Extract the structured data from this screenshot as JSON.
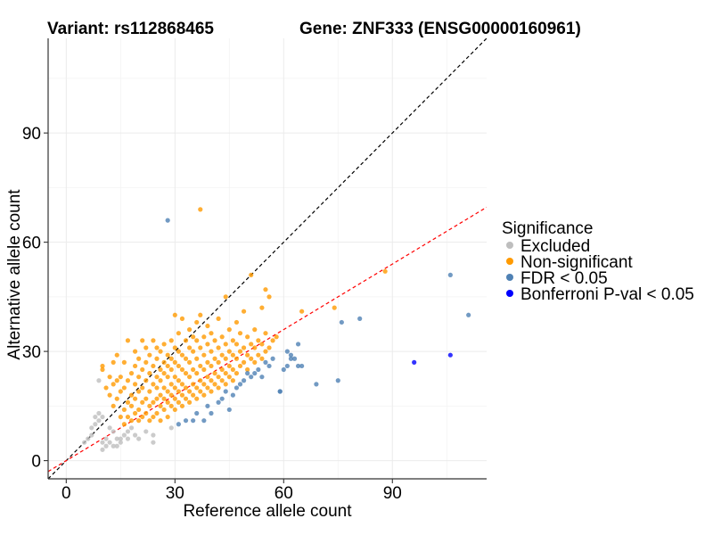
{
  "chart_data": {
    "type": "scatter",
    "title_variant": "Variant: rs112868465",
    "title_gene": "Gene: ZNF333 (ENSG00000160961)",
    "xlabel": "Reference allele count",
    "ylabel": "Alternative allele count",
    "xlim": [
      -5,
      116
    ],
    "ylim": [
      -5,
      116
    ],
    "xticks": [
      0,
      30,
      60,
      90
    ],
    "yticks": [
      0,
      30,
      60,
      90
    ],
    "grid": true,
    "reference_lines": [
      {
        "name": "identity",
        "slope": 1.0,
        "intercept": 0,
        "color": "#000000",
        "style": "dashed"
      },
      {
        "name": "fitted",
        "slope": 0.6,
        "intercept": 0,
        "color": "#ff0000",
        "style": "dashed"
      }
    ],
    "legend": {
      "title": "Significance",
      "position": "right",
      "entries": [
        {
          "label": "Excluded",
          "color": "#bebebe"
        },
        {
          "label": "Non-significant",
          "color": "#ff9a00"
        },
        {
          "label": "FDR < 0.05",
          "color": "#4f81b4"
        },
        {
          "label": "Bonferroni P-val < 0.05",
          "color": "#0000ff"
        }
      ]
    },
    "series": [
      {
        "name": "Excluded",
        "color": "#bebebe",
        "points": [
          [
            6,
            6
          ],
          [
            7,
            9
          ],
          [
            8,
            10
          ],
          [
            8,
            12
          ],
          [
            9,
            11
          ],
          [
            9,
            13
          ],
          [
            9,
            22
          ],
          [
            10,
            3
          ],
          [
            10,
            5
          ],
          [
            10,
            12
          ],
          [
            11,
            4
          ],
          [
            11,
            6
          ],
          [
            12,
            5
          ],
          [
            13,
            8
          ],
          [
            13,
            4
          ],
          [
            14,
            6
          ],
          [
            14,
            4
          ],
          [
            15,
            5
          ],
          [
            16,
            7
          ],
          [
            17,
            8
          ],
          [
            17,
            6
          ],
          [
            18,
            9
          ],
          [
            19,
            7
          ],
          [
            20,
            6
          ],
          [
            22,
            8
          ],
          [
            24,
            7
          ],
          [
            24,
            5
          ],
          [
            29,
            9
          ],
          [
            5,
            5
          ],
          [
            7,
            7
          ],
          [
            12,
            9
          ],
          [
            15,
            6
          ]
        ]
      },
      {
        "name": "Non-significant",
        "color": "#ff9a00",
        "points": [
          [
            10,
            25
          ],
          [
            10,
            26
          ],
          [
            11,
            20
          ],
          [
            12,
            18
          ],
          [
            12,
            23
          ],
          [
            13,
            15
          ],
          [
            13,
            21
          ],
          [
            13,
            27
          ],
          [
            14,
            17
          ],
          [
            14,
            22
          ],
          [
            14,
            29
          ],
          [
            15,
            12
          ],
          [
            15,
            19
          ],
          [
            15,
            23
          ],
          [
            16,
            10
          ],
          [
            16,
            14
          ],
          [
            16,
            20
          ],
          [
            16,
            27
          ],
          [
            17,
            12
          ],
          [
            17,
            16
          ],
          [
            17,
            22
          ],
          [
            17,
            33
          ],
          [
            18,
            11
          ],
          [
            18,
            15
          ],
          [
            18,
            18
          ],
          [
            18,
            24
          ],
          [
            19,
            13
          ],
          [
            19,
            17
          ],
          [
            19,
            21
          ],
          [
            19,
            26
          ],
          [
            19,
            30
          ],
          [
            20,
            11
          ],
          [
            20,
            14
          ],
          [
            20,
            19
          ],
          [
            20,
            23
          ],
          [
            20,
            28
          ],
          [
            21,
            12
          ],
          [
            21,
            16
          ],
          [
            21,
            20
          ],
          [
            21,
            25
          ],
          [
            21,
            33
          ],
          [
            22,
            13
          ],
          [
            22,
            17
          ],
          [
            22,
            22
          ],
          [
            22,
            27
          ],
          [
            22,
            31
          ],
          [
            23,
            11
          ],
          [
            23,
            15
          ],
          [
            23,
            19
          ],
          [
            23,
            24
          ],
          [
            23,
            29
          ],
          [
            24,
            12
          ],
          [
            24,
            16
          ],
          [
            24,
            21
          ],
          [
            24,
            26
          ],
          [
            24,
            33
          ],
          [
            25,
            13
          ],
          [
            25,
            17
          ],
          [
            25,
            20
          ],
          [
            25,
            23
          ],
          [
            25,
            28
          ],
          [
            25,
            31
          ],
          [
            26,
            11
          ],
          [
            26,
            15
          ],
          [
            26,
            18
          ],
          [
            26,
            22
          ],
          [
            26,
            25
          ],
          [
            26,
            30
          ],
          [
            27,
            14
          ],
          [
            27,
            17
          ],
          [
            27,
            20
          ],
          [
            27,
            24
          ],
          [
            27,
            27
          ],
          [
            27,
            32
          ],
          [
            28,
            12
          ],
          [
            28,
            16
          ],
          [
            28,
            19
          ],
          [
            28,
            23
          ],
          [
            28,
            26
          ],
          [
            28,
            29
          ],
          [
            29,
            15
          ],
          [
            29,
            18
          ],
          [
            29,
            21
          ],
          [
            29,
            25
          ],
          [
            29,
            28
          ],
          [
            29,
            33
          ],
          [
            30,
            14
          ],
          [
            30,
            17
          ],
          [
            30,
            20
          ],
          [
            30,
            23
          ],
          [
            30,
            27
          ],
          [
            30,
            31
          ],
          [
            30,
            40
          ],
          [
            31,
            16
          ],
          [
            31,
            19
          ],
          [
            31,
            22
          ],
          [
            31,
            26
          ],
          [
            31,
            30
          ],
          [
            31,
            35
          ],
          [
            32,
            15
          ],
          [
            32,
            18
          ],
          [
            32,
            21
          ],
          [
            32,
            25
          ],
          [
            32,
            29
          ],
          [
            32,
            39
          ],
          [
            33,
            17
          ],
          [
            33,
            20
          ],
          [
            33,
            24
          ],
          [
            33,
            28
          ],
          [
            33,
            33
          ],
          [
            34,
            16
          ],
          [
            34,
            19
          ],
          [
            34,
            23
          ],
          [
            34,
            27
          ],
          [
            34,
            31
          ],
          [
            34,
            36
          ],
          [
            35,
            18
          ],
          [
            35,
            21
          ],
          [
            35,
            25
          ],
          [
            35,
            30
          ],
          [
            35,
            34
          ],
          [
            36,
            17
          ],
          [
            36,
            20
          ],
          [
            36,
            24
          ],
          [
            36,
            28
          ],
          [
            36,
            33
          ],
          [
            36,
            38
          ],
          [
            37,
            19
          ],
          [
            37,
            22
          ],
          [
            37,
            26
          ],
          [
            37,
            31
          ],
          [
            37,
            40
          ],
          [
            37,
            69
          ],
          [
            38,
            18
          ],
          [
            38,
            21
          ],
          [
            38,
            25
          ],
          [
            38,
            29
          ],
          [
            38,
            34
          ],
          [
            39,
            20
          ],
          [
            39,
            23
          ],
          [
            39,
            27
          ],
          [
            39,
            32
          ],
          [
            39,
            37
          ],
          [
            40,
            19
          ],
          [
            40,
            22
          ],
          [
            40,
            26
          ],
          [
            40,
            30
          ],
          [
            40,
            35
          ],
          [
            41,
            21
          ],
          [
            41,
            24
          ],
          [
            41,
            28
          ],
          [
            41,
            33
          ],
          [
            42,
            20
          ],
          [
            42,
            23
          ],
          [
            42,
            27
          ],
          [
            42,
            31
          ],
          [
            42,
            39
          ],
          [
            43,
            22
          ],
          [
            43,
            25
          ],
          [
            43,
            29
          ],
          [
            43,
            34
          ],
          [
            44,
            21
          ],
          [
            44,
            24
          ],
          [
            44,
            28
          ],
          [
            44,
            32
          ],
          [
            44,
            45
          ],
          [
            45,
            23
          ],
          [
            45,
            26
          ],
          [
            45,
            30
          ],
          [
            45,
            36
          ],
          [
            46,
            22
          ],
          [
            46,
            25
          ],
          [
            46,
            29
          ],
          [
            46,
            33
          ],
          [
            47,
            24
          ],
          [
            47,
            28
          ],
          [
            47,
            32
          ],
          [
            47,
            38
          ],
          [
            48,
            26
          ],
          [
            48,
            30
          ],
          [
            48,
            35
          ],
          [
            49,
            27
          ],
          [
            49,
            31
          ],
          [
            49,
            41
          ],
          [
            50,
            25
          ],
          [
            50,
            29
          ],
          [
            50,
            34
          ],
          [
            51,
            28
          ],
          [
            51,
            32
          ],
          [
            51,
            51
          ],
          [
            52,
            27
          ],
          [
            52,
            31
          ],
          [
            52,
            36
          ],
          [
            53,
            29
          ],
          [
            53,
            33
          ],
          [
            54,
            28
          ],
          [
            54,
            32
          ],
          [
            54,
            42
          ],
          [
            55,
            30
          ],
          [
            55,
            35
          ],
          [
            55,
            47
          ],
          [
            56,
            31
          ],
          [
            56,
            45
          ],
          [
            57,
            33
          ],
          [
            58,
            34
          ],
          [
            65,
            41
          ],
          [
            74,
            42
          ],
          [
            88,
            52
          ]
        ]
      },
      {
        "name": "FDR < 0.05",
        "color": "#4f81b4",
        "points": [
          [
            28,
            66
          ],
          [
            31,
            10
          ],
          [
            33,
            11
          ],
          [
            35,
            11
          ],
          [
            36,
            13
          ],
          [
            38,
            11
          ],
          [
            39,
            15
          ],
          [
            40,
            13
          ],
          [
            42,
            16
          ],
          [
            43,
            17
          ],
          [
            44,
            19
          ],
          [
            45,
            14
          ],
          [
            46,
            18
          ],
          [
            47,
            20
          ],
          [
            48,
            21
          ],
          [
            49,
            22
          ],
          [
            50,
            24
          ],
          [
            51,
            23
          ],
          [
            52,
            24
          ],
          [
            53,
            25
          ],
          [
            54,
            23
          ],
          [
            55,
            27
          ],
          [
            56,
            26
          ],
          [
            57,
            28
          ],
          [
            59,
            19
          ],
          [
            60,
            25
          ],
          [
            61,
            30
          ],
          [
            62,
            29
          ],
          [
            63,
            28
          ],
          [
            64,
            32
          ],
          [
            65,
            26
          ],
          [
            69,
            21
          ],
          [
            75,
            22
          ],
          [
            76,
            38
          ],
          [
            81,
            39
          ],
          [
            106,
            51
          ],
          [
            111,
            40
          ],
          [
            59,
            19
          ],
          [
            61,
            26
          ],
          [
            62,
            28
          ],
          [
            64,
            26
          ]
        ]
      },
      {
        "name": "Bonferroni P-val < 0.05",
        "color": "#0000ff",
        "points": [
          [
            96,
            27
          ],
          [
            106,
            29
          ]
        ]
      }
    ]
  }
}
